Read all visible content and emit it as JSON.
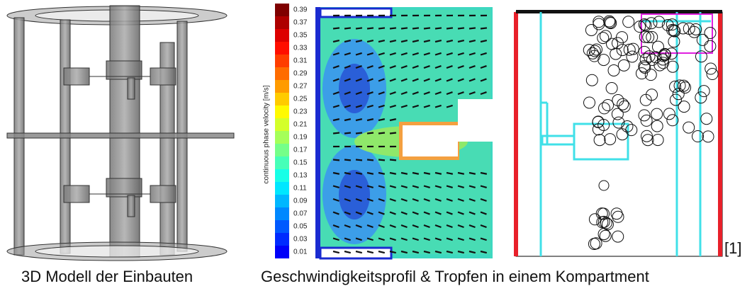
{
  "figure": {
    "colorbar": {
      "label": "continuous phase velocity [m/s]",
      "ticks": [
        "0.39",
        "0.37",
        "0.35",
        "0.33",
        "0.31",
        "0.29",
        "0.27",
        "0.25",
        "0.23",
        "0.21",
        "0.19",
        "0.17",
        "0.15",
        "0.13",
        "0.11",
        "0.09",
        "0.07",
        "0.05",
        "0.03",
        "0.01"
      ]
    },
    "captions": [
      "3D Modell der Einbauten",
      "Geschwindigkeitsprofil & Tropfen in einem Kompartment"
    ],
    "reference": "[1]"
  }
}
